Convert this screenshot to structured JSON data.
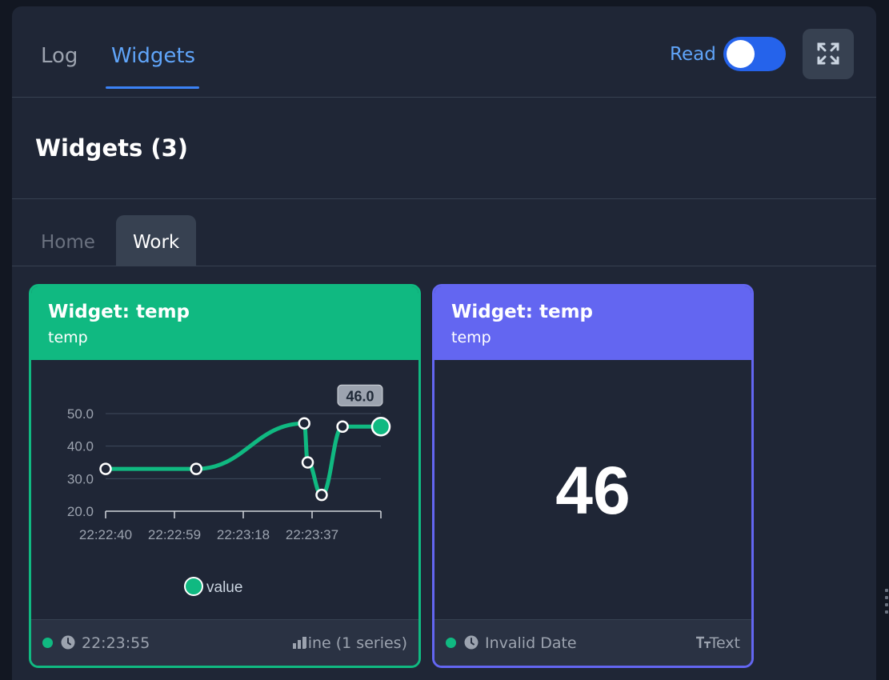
{
  "nav": {
    "tabs": [
      {
        "label": "Log"
      },
      {
        "label": "Widgets"
      }
    ],
    "active_tab": "Widgets",
    "read_label": "Read",
    "read_enabled": true,
    "expand_icon": "expand-icon"
  },
  "section": {
    "title": "Widgets (3)"
  },
  "subtabs": [
    {
      "label": "Home"
    },
    {
      "label": "Work"
    }
  ],
  "active_subtab": "Work",
  "widgets": [
    {
      "title": "Widget: temp",
      "subtitle": "temp",
      "footer": {
        "time": "22:23:55",
        "type": "line (1 series)",
        "status_color": "#10b981"
      },
      "accent": "#10b981"
    },
    {
      "title": "Widget: temp",
      "subtitle": "temp",
      "value": "46",
      "footer": {
        "time": "Invalid Date",
        "type": "Text",
        "status_color": "#10b981"
      },
      "accent": "#6366f1"
    }
  ],
  "chart_data": {
    "type": "line",
    "x": [
      "22:22:40",
      "22:23:06",
      "22:23:37",
      "22:23:38",
      "22:23:42",
      "22:23:48",
      "22:23:59"
    ],
    "series": [
      {
        "name": "value",
        "values": [
          33,
          33,
          47,
          35,
          25,
          46,
          46
        ],
        "color": "#10b981"
      }
    ],
    "x_ticks": [
      "22:22:40",
      "22:22:59",
      "22:23:18",
      "22:23:37"
    ],
    "y_ticks": [
      "20.0",
      "30.0",
      "40.0",
      "50.0"
    ],
    "ylim": [
      20,
      50
    ],
    "last_label": "46.0",
    "legend": "bottom",
    "grid": true
  }
}
